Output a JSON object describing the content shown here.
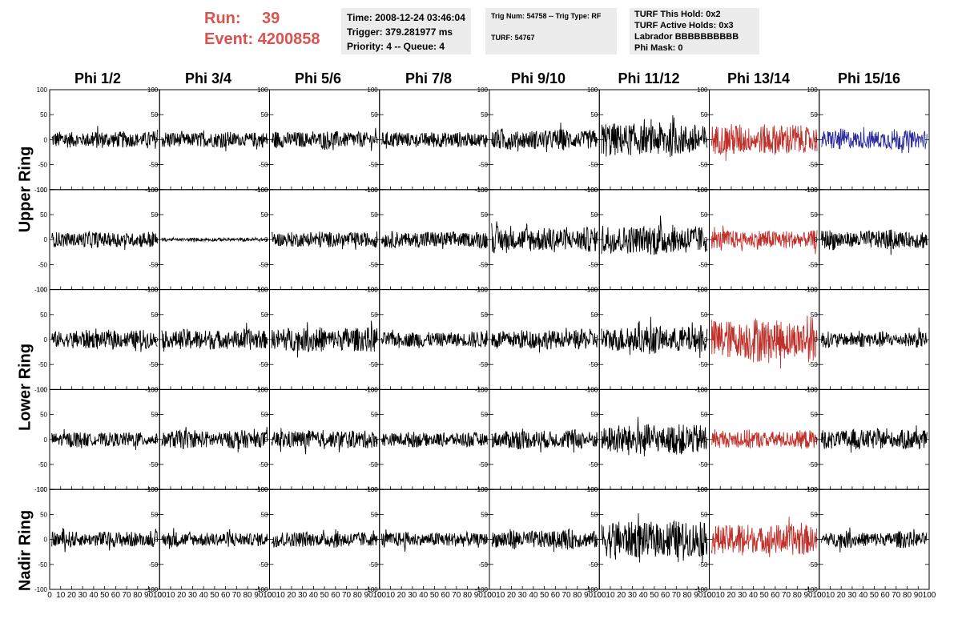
{
  "run": {
    "run_label": "Run:",
    "run_value": "39",
    "event_label": "Event:",
    "event_value": "4200858"
  },
  "time_pane": {
    "time": "Time: 2008-12-24 03:46:04",
    "trigger": "Trigger: 379.281977 ms",
    "priority": "Priority: 4 -- Queue: 4"
  },
  "trig_pane": {
    "trig": "Trig Num: 54758 -- Trig Type: RF",
    "turf": "TURF: 54767"
  },
  "turf_pane": {
    "hold": "TURF This Hold: 0x2",
    "active": "TURF Active Holds: 0x3",
    "labrador": "Labrador BBBBBBBBBB",
    "phimask": "Phi Mask: 0"
  },
  "phi_headers": [
    "Phi 1/2",
    "Phi 3/4",
    "Phi 5/6",
    "Phi 7/8",
    "Phi 9/10",
    "Phi 11/12",
    "Phi 13/14",
    "Phi 15/16"
  ],
  "ring_labels": {
    "upper": "Upper Ring",
    "lower": "Lower Ring",
    "nadir": "Nadir Ring"
  },
  "colors": {
    "run_text": "#d9534f",
    "trace_default": "#000000",
    "trace_red": "#c0302a",
    "trace_blue": "#2a2a9a",
    "pane_bg": "#ececec"
  },
  "chart_data": {
    "type": "line",
    "title": "",
    "xlabel": "",
    "ylabel": "",
    "xlim": [
      0,
      100
    ],
    "ylim": [
      -100,
      100
    ],
    "y_ticks": [
      100,
      50,
      0,
      -50,
      -100
    ],
    "x_ticks": [
      0,
      10,
      20,
      30,
      40,
      50,
      60,
      70,
      80,
      90,
      100
    ],
    "x_ticklabels_bottom_row": [
      "0",
      "10",
      "20",
      "30",
      "40",
      "50",
      "60",
      "70",
      "80",
      "90",
      "100"
    ],
    "rows": 5,
    "cols": 8,
    "amplitudes": [
      [
        15,
        14,
        15,
        14,
        18,
        30,
        28,
        18
      ],
      [
        14,
        3,
        14,
        15,
        22,
        27,
        17,
        17
      ],
      [
        16,
        18,
        22,
        14,
        17,
        24,
        38,
        14
      ],
      [
        13,
        16,
        16,
        13,
        17,
        27,
        16,
        18
      ],
      [
        14,
        13,
        14,
        13,
        17,
        33,
        28,
        14
      ]
    ],
    "trace_colors": [
      [
        "default",
        "default",
        "default",
        "default",
        "default",
        "default",
        "red",
        "blue"
      ],
      [
        "default",
        "default",
        "default",
        "default",
        "default",
        "default",
        "red",
        "default"
      ],
      [
        "default",
        "default",
        "default",
        "default",
        "default",
        "default",
        "red",
        "default"
      ],
      [
        "default",
        "default",
        "default",
        "default",
        "default",
        "default",
        "red",
        "default"
      ],
      [
        "default",
        "default",
        "default",
        "default",
        "default",
        "default",
        "red",
        "default"
      ]
    ]
  }
}
